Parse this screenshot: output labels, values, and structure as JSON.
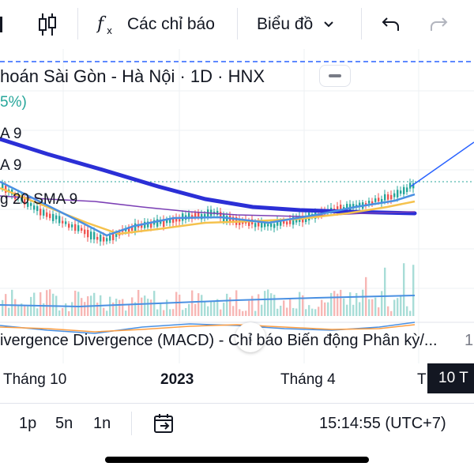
{
  "toolbar": {
    "indicators_label": "Các chỉ báo",
    "chart_type_label": "Biểu đồ"
  },
  "legend": {
    "title": "hoán Sài Gòn - Hà Nội · 1D · HNX",
    "change": "5%)",
    "ma1": "A 9",
    "ma2": "A 9",
    "ma3": "g 20 SMA 9"
  },
  "macd": {
    "label": "ivergence Divergence (MACD) - Chỉ báo Biến động Phân kỳ/...",
    "more": "1"
  },
  "time_axis": {
    "label1": "Tháng 10",
    "label2": "2023",
    "label3": "Tháng 4",
    "label4": "T",
    "crosshair": "10 T"
  },
  "bottom": {
    "range_1d": "1p",
    "range_5d": "5n",
    "range_1y": "1n",
    "clock": "15:14:55 (UTC+7)"
  },
  "colors": {
    "up": "#26a69a",
    "down": "#ef5350",
    "ma_long": "#2b2fd6",
    "ma_blue": "#4a90e2",
    "ma_yellow": "#f5c24d",
    "ma_purple": "#7b3fb5",
    "trend": "#2962ff",
    "macd_orange": "#ff9f43"
  }
}
